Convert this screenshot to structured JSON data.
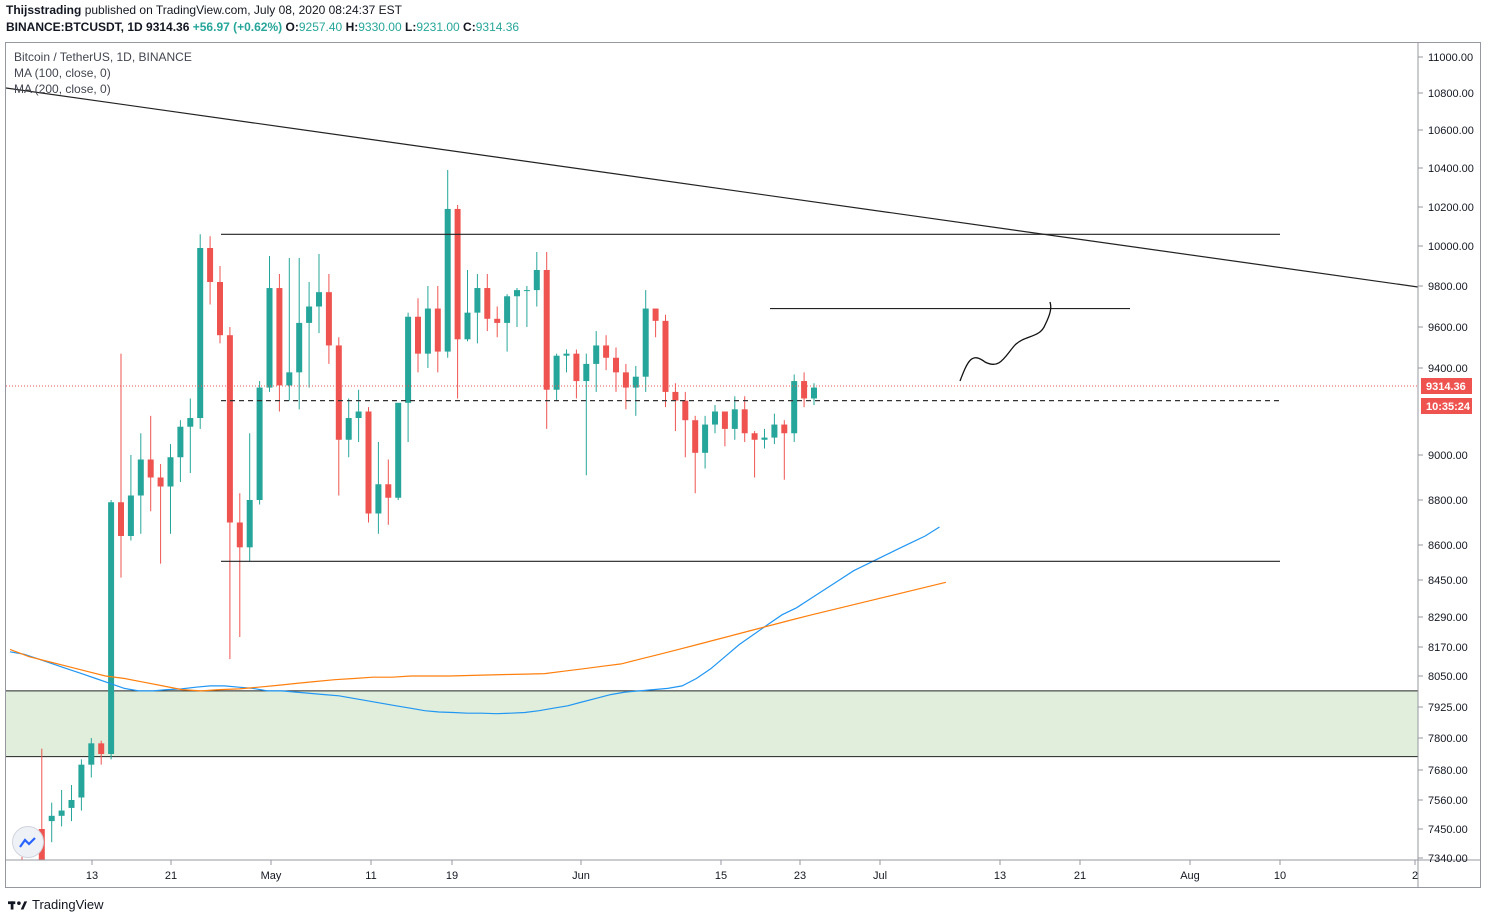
{
  "header": {
    "author": "Thijsstrading",
    "published_text": "published on TradingView.com, July 08, 2020 08:24:37 EST",
    "symbol": "BINANCE:BTCUSDT, 1D",
    "last": "9314.36",
    "change": "+56.97 (+0.62%)",
    "o_label": "O:",
    "o_val": "9257.40",
    "h_label": "H:",
    "h_val": "9330.00",
    "l_label": "L:",
    "l_val": "9231.00",
    "c_label": "C:",
    "c_val": "9314.36"
  },
  "legend": {
    "title": "Bitcoin / TetherUS, 1D, BINANCE",
    "ma100": "MA (100, close, 0)",
    "ma200": "MA (200, close, 0)"
  },
  "price_label": "9314.36",
  "timer_label": "10:35:24",
  "footer": {
    "brand": "TradingView"
  },
  "colors": {
    "up": "#26a69a",
    "down": "#ef5350",
    "ma100": "#2196f3",
    "ma200": "#ff7f0e",
    "zone": "#e0eedb"
  },
  "chart_data": {
    "type": "candlestick",
    "y_axis_ticks": [
      "11000.00",
      "10800.00",
      "10600.00",
      "10400.00",
      "10200.00",
      "10000.00",
      "9800.00",
      "9600.00",
      "9400.00",
      "9000.00",
      "8800.00",
      "8600.00",
      "8450.00",
      "8290.00",
      "8170.00",
      "8050.00",
      "7925.00",
      "7800.00",
      "7680.00",
      "7560.00",
      "7450.00",
      "7340.00"
    ],
    "x_axis_ticks": [
      "13",
      "21",
      "May",
      "11",
      "19",
      "Jun",
      "15",
      "23",
      "Jul",
      "13",
      "21",
      "Aug",
      "10",
      "2"
    ],
    "candles": [
      {
        "o": 7380,
        "h": 7400,
        "l": 7330,
        "c": 7350
      },
      {
        "o": 7310,
        "h": 7300,
        "l": 7200,
        "c": 7250
      },
      {
        "o": 7450,
        "h": 7760,
        "l": 7250,
        "c": 7300
      },
      {
        "o": 7480,
        "h": 7550,
        "l": 7400,
        "c": 7500
      },
      {
        "o": 7500,
        "h": 7600,
        "l": 7460,
        "c": 7520
      },
      {
        "o": 7530,
        "h": 7620,
        "l": 7480,
        "c": 7560
      },
      {
        "o": 7570,
        "h": 7720,
        "l": 7520,
        "c": 7700
      },
      {
        "o": 7700,
        "h": 7800,
        "l": 7650,
        "c": 7780
      },
      {
        "o": 7780,
        "h": 7790,
        "l": 7700,
        "c": 7740
      },
      {
        "o": 7740,
        "h": 8800,
        "l": 7720,
        "c": 8790
      },
      {
        "o": 8790,
        "h": 9470,
        "l": 8460,
        "c": 8640
      },
      {
        "o": 8640,
        "h": 9000,
        "l": 8620,
        "c": 8820
      },
      {
        "o": 8820,
        "h": 9100,
        "l": 8650,
        "c": 8980
      },
      {
        "o": 8980,
        "h": 9180,
        "l": 8750,
        "c": 8900
      },
      {
        "o": 8900,
        "h": 8960,
        "l": 8520,
        "c": 8860
      },
      {
        "o": 8860,
        "h": 9050,
        "l": 8650,
        "c": 8990
      },
      {
        "o": 8990,
        "h": 9160,
        "l": 8880,
        "c": 9130
      },
      {
        "o": 9130,
        "h": 9260,
        "l": 8920,
        "c": 9170
      },
      {
        "o": 9170,
        "h": 10060,
        "l": 9120,
        "c": 9990
      },
      {
        "o": 9990,
        "h": 10050,
        "l": 9710,
        "c": 9820
      },
      {
        "o": 9820,
        "h": 9900,
        "l": 9520,
        "c": 9560
      },
      {
        "o": 9560,
        "h": 9600,
        "l": 8120,
        "c": 8700
      },
      {
        "o": 8700,
        "h": 8830,
        "l": 8210,
        "c": 8590
      },
      {
        "o": 8590,
        "h": 9100,
        "l": 8530,
        "c": 8800
      },
      {
        "o": 8800,
        "h": 9340,
        "l": 8780,
        "c": 9310
      },
      {
        "o": 9310,
        "h": 9950,
        "l": 9290,
        "c": 9790
      },
      {
        "o": 9790,
        "h": 9860,
        "l": 9200,
        "c": 9320
      },
      {
        "o": 9320,
        "h": 9940,
        "l": 9250,
        "c": 9380
      },
      {
        "o": 9380,
        "h": 9940,
        "l": 9210,
        "c": 9620
      },
      {
        "o": 9620,
        "h": 9820,
        "l": 9310,
        "c": 9700
      },
      {
        "o": 9700,
        "h": 9960,
        "l": 9570,
        "c": 9770
      },
      {
        "o": 9770,
        "h": 9860,
        "l": 9420,
        "c": 9510
      },
      {
        "o": 9510,
        "h": 9550,
        "l": 8820,
        "c": 9070
      },
      {
        "o": 9070,
        "h": 9260,
        "l": 8990,
        "c": 9170
      },
      {
        "o": 9170,
        "h": 9300,
        "l": 9060,
        "c": 9200
      },
      {
        "o": 9200,
        "h": 9220,
        "l": 8700,
        "c": 8740
      },
      {
        "o": 8740,
        "h": 9060,
        "l": 8650,
        "c": 8870
      },
      {
        "o": 8870,
        "h": 8980,
        "l": 8690,
        "c": 8810
      },
      {
        "o": 8810,
        "h": 9230,
        "l": 8800,
        "c": 9240
      },
      {
        "o": 9240,
        "h": 9670,
        "l": 9060,
        "c": 9650
      },
      {
        "o": 9650,
        "h": 9740,
        "l": 9380,
        "c": 9470
      },
      {
        "o": 9470,
        "h": 9800,
        "l": 9400,
        "c": 9690
      },
      {
        "o": 9690,
        "h": 9800,
        "l": 9380,
        "c": 9480
      },
      {
        "o": 9480,
        "h": 10390,
        "l": 9450,
        "c": 10190
      },
      {
        "o": 10190,
        "h": 10210,
        "l": 9260,
        "c": 9540
      },
      {
        "o": 9540,
        "h": 9880,
        "l": 9530,
        "c": 9670
      },
      {
        "o": 9670,
        "h": 9860,
        "l": 9520,
        "c": 9790
      },
      {
        "o": 9790,
        "h": 9860,
        "l": 9580,
        "c": 9640
      },
      {
        "o": 9640,
        "h": 9700,
        "l": 9550,
        "c": 9620
      },
      {
        "o": 9620,
        "h": 9760,
        "l": 9480,
        "c": 9750
      },
      {
        "o": 9750,
        "h": 9790,
        "l": 9600,
        "c": 9780
      },
      {
        "o": 9780,
        "h": 9800,
        "l": 9600,
        "c": 9780
      },
      {
        "o": 9780,
        "h": 9970,
        "l": 9700,
        "c": 9880
      },
      {
        "o": 9880,
        "h": 9970,
        "l": 9120,
        "c": 9300
      },
      {
        "o": 9300,
        "h": 9470,
        "l": 9250,
        "c": 9460
      },
      {
        "o": 9460,
        "h": 9490,
        "l": 9380,
        "c": 9470
      },
      {
        "o": 9470,
        "h": 9490,
        "l": 9260,
        "c": 9340
      },
      {
        "o": 9340,
        "h": 9470,
        "l": 8910,
        "c": 9420
      },
      {
        "o": 9420,
        "h": 9580,
        "l": 9290,
        "c": 9510
      },
      {
        "o": 9510,
        "h": 9560,
        "l": 9390,
        "c": 9450
      },
      {
        "o": 9450,
        "h": 9500,
        "l": 9290,
        "c": 9380
      },
      {
        "o": 9380,
        "h": 9420,
        "l": 9210,
        "c": 9310
      },
      {
        "o": 9310,
        "h": 9410,
        "l": 9180,
        "c": 9360
      },
      {
        "o": 9360,
        "h": 9780,
        "l": 9290,
        "c": 9690
      },
      {
        "o": 9690,
        "h": 9690,
        "l": 9550,
        "c": 9630
      },
      {
        "o": 9630,
        "h": 9660,
        "l": 9220,
        "c": 9290
      },
      {
        "o": 9290,
        "h": 9330,
        "l": 9110,
        "c": 9250
      },
      {
        "o": 9250,
        "h": 9290,
        "l": 8990,
        "c": 9160
      },
      {
        "o": 9160,
        "h": 9180,
        "l": 8830,
        "c": 9010
      },
      {
        "o": 9010,
        "h": 9180,
        "l": 8940,
        "c": 9140
      },
      {
        "o": 9140,
        "h": 9230,
        "l": 9100,
        "c": 9200
      },
      {
        "o": 9200,
        "h": 9200,
        "l": 9040,
        "c": 9120
      },
      {
        "o": 9120,
        "h": 9270,
        "l": 9070,
        "c": 9210
      },
      {
        "o": 9210,
        "h": 9270,
        "l": 9060,
        "c": 9100
      },
      {
        "o": 9100,
        "h": 9110,
        "l": 8900,
        "c": 9070
      },
      {
        "o": 9070,
        "h": 9120,
        "l": 9030,
        "c": 9080
      },
      {
        "o": 9080,
        "h": 9190,
        "l": 9050,
        "c": 9140
      },
      {
        "o": 9140,
        "h": 9160,
        "l": 8890,
        "c": 9100
      },
      {
        "o": 9100,
        "h": 9370,
        "l": 9060,
        "c": 9340
      },
      {
        "o": 9340,
        "h": 9380,
        "l": 9220,
        "c": 9260
      },
      {
        "o": 9260,
        "h": 9330,
        "l": 9230,
        "c": 9310
      }
    ],
    "ma100": [
      8150,
      8140,
      8120,
      8100,
      8080,
      8060,
      8040,
      8020,
      8000,
      7990,
      7990,
      7995,
      7998,
      8005,
      8010,
      8010,
      8005,
      8000,
      7990,
      7990,
      7985,
      7980,
      7975,
      7970,
      7960,
      7950,
      7940,
      7930,
      7920,
      7910,
      7905,
      7903,
      7900,
      7900,
      7898,
      7900,
      7903,
      7910,
      7920,
      7930,
      7945,
      7960,
      7975,
      7985,
      7990,
      7995,
      8000,
      8010,
      8040,
      8080,
      8130,
      8180,
      8220,
      8260,
      8300,
      8330,
      8370,
      8410,
      8450,
      8490,
      8520,
      8550,
      8580,
      8610,
      8640,
      8680
    ],
    "ma200": [
      8160,
      8130,
      8110,
      8090,
      8070,
      8050,
      8040,
      8025,
      8010,
      7995,
      7990,
      7995,
      7998,
      8005,
      8012,
      8020,
      8028,
      8035,
      8040,
      8045,
      8045,
      8050,
      8050,
      8050,
      8052,
      8054,
      8056,
      8058,
      8060,
      8070,
      8080,
      8090,
      8100,
      8120,
      8140,
      8160,
      8180,
      8200,
      8220,
      8240,
      8260,
      8280,
      8300,
      8320,
      8340,
      8360,
      8380,
      8400,
      8420,
      8440
    ],
    "resistance_upper": 10060,
    "support_lower": 8530,
    "mid_level_dashed": 9250,
    "short_resistance": 9690,
    "zone_top": 7990,
    "zone_bottom": 7730
  }
}
